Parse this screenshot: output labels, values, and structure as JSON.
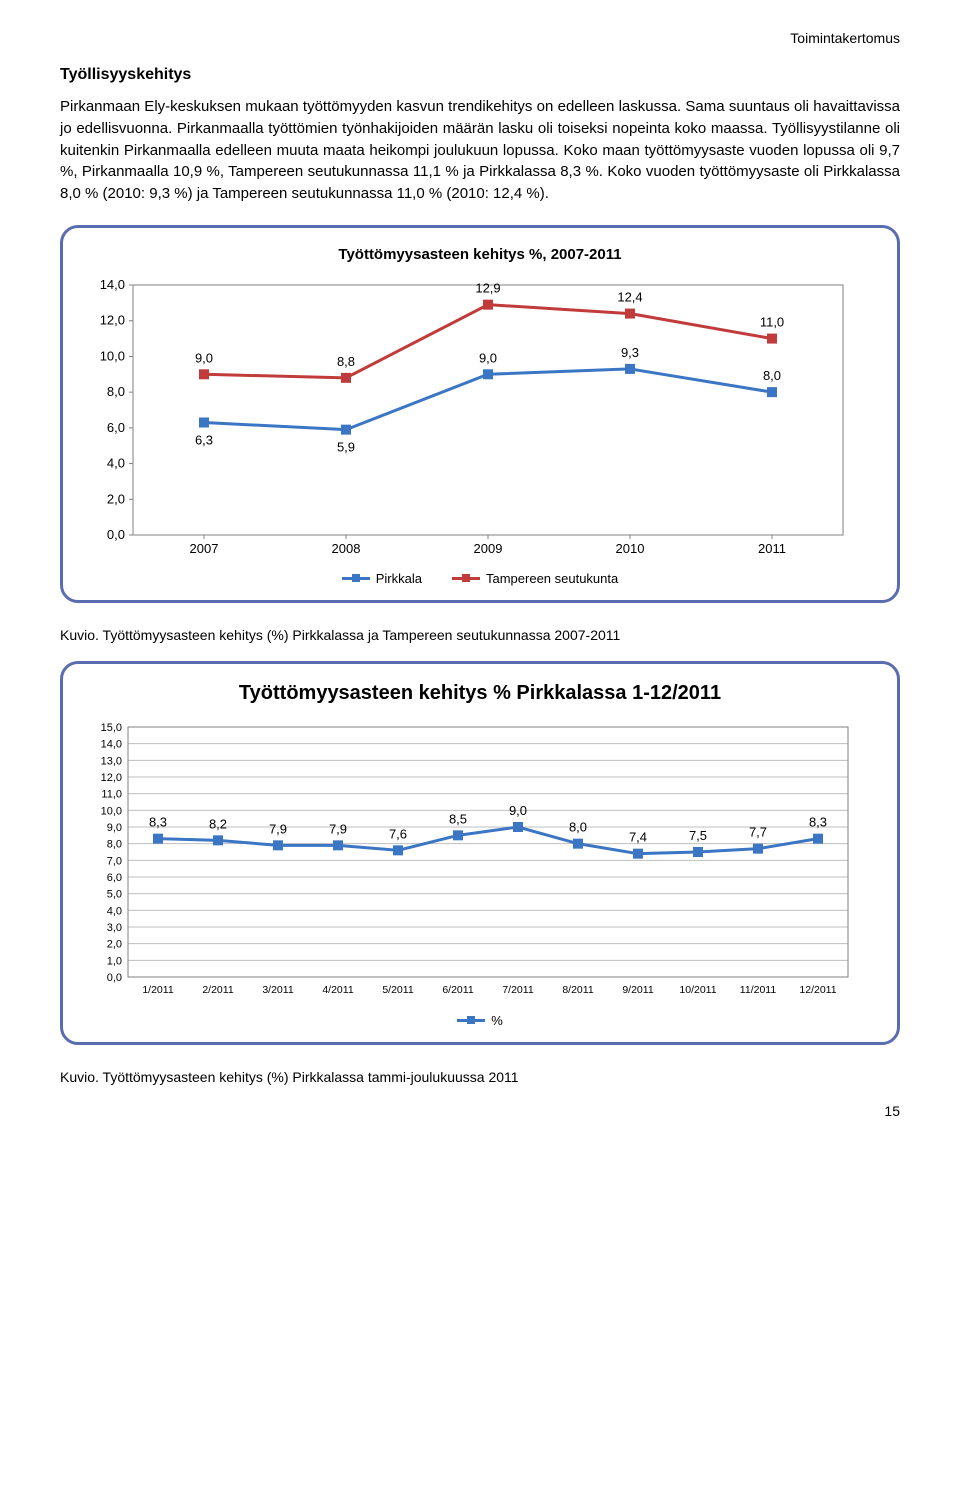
{
  "header_right": "Toimintakertomus",
  "section_title": "Työllisyyskehitys",
  "paragraph": "Pirkanmaan Ely-keskuksen mukaan työttömyyden kasvun trendikehitys on edelleen laskussa. Sama suuntaus oli havaittavissa jo edellisvuonna. Pirkanmaalla työttömien työnhakijoiden määrän lasku oli toiseksi nopeinta koko maassa. Työllisyystilanne oli kuitenkin Pirkanmaalla edelleen muuta maata heikompi joulukuun lopussa. Koko maan työttömyysaste vuoden lopussa oli 9,7 %, Pirkanmaalla 10,9 %, Tampereen seutukunnassa 11,1 % ja Pirkkalassa 8,3 %. Koko vuoden työttömyysaste oli Pirkkalassa 8,0 % (2010: 9,3 %) ja Tampereen seutukunnassa 11,0 % (2010: 12,4 %).",
  "chart1": {
    "title": "Työttömyysasteen kehitys %, 2007-2011",
    "years": [
      "2007",
      "2008",
      "2009",
      "2010",
      "2011"
    ],
    "yticks": [
      "0,0",
      "2,0",
      "4,0",
      "6,0",
      "8,0",
      "10,0",
      "12,0",
      "14,0"
    ],
    "ymax": 14,
    "series": [
      {
        "name": "Pirkkala",
        "color": "#3b76c4",
        "marker_fill": "#3b76c4",
        "values": [
          6.3,
          5.9,
          9.0,
          9.3,
          8.0
        ],
        "labels": [
          "6,3",
          "5,9",
          "9,0",
          "9,3",
          "8,0"
        ],
        "label_pos": [
          "below",
          "below",
          "above",
          "above",
          "above"
        ]
      },
      {
        "name": "Tampereen seutukunta",
        "color": "#c23b3b",
        "marker_fill": "#c23b3b",
        "values": [
          9.0,
          8.8,
          12.9,
          12.4,
          11.0
        ],
        "labels": [
          "9,0",
          "8,8",
          "12,9",
          "12,4",
          "11,0"
        ],
        "label_pos": [
          "above",
          "above",
          "above",
          "above",
          "above"
        ]
      }
    ],
    "legend": [
      "Pirkkala",
      "Tampereen seutukunta"
    ]
  },
  "caption1": "Kuvio. Työttömyysasteen kehitys (%) Pirkkalassa ja Tampereen seutukunnassa 2007-2011",
  "chart2": {
    "title": "Työttömyysasteen kehitys % Pirkkalassa 1-12/2011",
    "months": [
      "1/2011",
      "2/2011",
      "3/2011",
      "4/2011",
      "5/2011",
      "6/2011",
      "7/2011",
      "8/2011",
      "9/2011",
      "10/2011",
      "11/2011",
      "12/2011"
    ],
    "yticks": [
      "0,0",
      "1,0",
      "2,0",
      "3,0",
      "4,0",
      "5,0",
      "6,0",
      "7,0",
      "8,0",
      "9,0",
      "10,0",
      "11,0",
      "12,0",
      "13,0",
      "14,0",
      "15,0"
    ],
    "ymax": 15,
    "series": {
      "name": "%",
      "color": "#3b76c4",
      "marker_fill": "#3b76c4",
      "values": [
        8.3,
        8.2,
        7.9,
        7.9,
        7.6,
        8.5,
        9.0,
        8.0,
        7.4,
        7.5,
        7.7,
        8.3
      ],
      "labels": [
        "8,3",
        "8,2",
        "7,9",
        "7,9",
        "7,6",
        "8,5",
        "9,0",
        "8,0",
        "7,4",
        "7,5",
        "7,7",
        "8,3"
      ]
    },
    "legend": [
      "%"
    ],
    "grid_color": "#bfbfbf"
  },
  "caption2": "Kuvio. Työttömyysasteen kehitys (%) Pirkkalassa tammi-joulukuussa 2011",
  "page_num": "15"
}
